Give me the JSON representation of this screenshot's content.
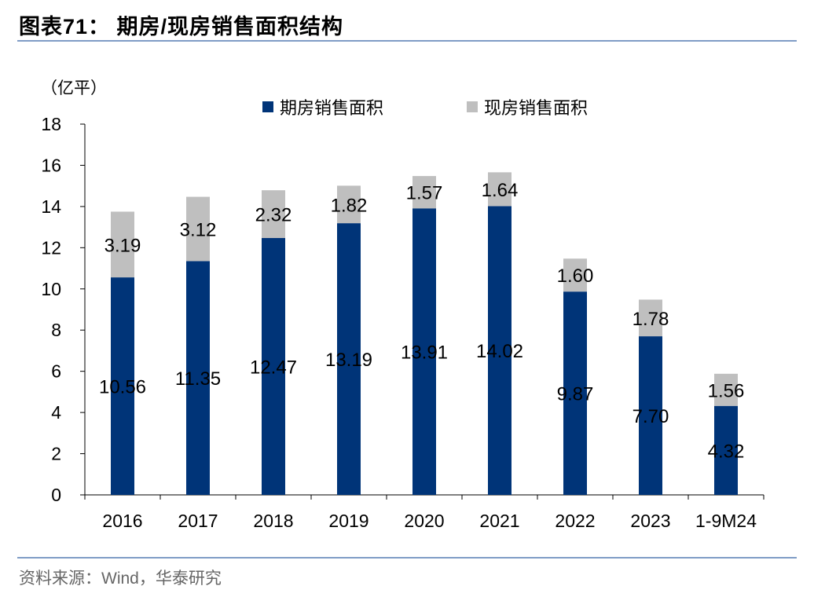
{
  "title": "图表71：  期房/现房销售面积结构",
  "source": "资料来源：Wind，华泰研究",
  "chart_data": {
    "type": "bar",
    "stacked": true,
    "title": "图表71：  期房/现房销售面积结构",
    "ylabel": "（亿平）",
    "ylim": [
      0,
      18
    ],
    "yticks": [
      0,
      2,
      4,
      6,
      8,
      10,
      12,
      14,
      16,
      18
    ],
    "grid": false,
    "legend_position": "top",
    "categories": [
      "2016",
      "2017",
      "2018",
      "2019",
      "2020",
      "2021",
      "2022",
      "2023",
      "1-9M24"
    ],
    "series": [
      {
        "name": "期房销售面积",
        "color": "#003478",
        "values": [
          10.56,
          11.35,
          12.47,
          13.19,
          13.91,
          14.02,
          9.87,
          7.7,
          4.32
        ],
        "labels": [
          "10.56",
          "11.35",
          "12.47",
          "13.19",
          "13.91",
          "14.02",
          "9.87",
          "7.70",
          "4.32"
        ]
      },
      {
        "name": "现房销售面积",
        "color": "#bfbfbf",
        "values": [
          3.19,
          3.12,
          2.32,
          1.82,
          1.57,
          1.64,
          1.6,
          1.78,
          1.56
        ],
        "labels": [
          "3.19",
          "3.12",
          "2.32",
          "1.82",
          "1.57",
          "1.64",
          "1.60",
          "1.78",
          "1.56"
        ]
      }
    ]
  }
}
